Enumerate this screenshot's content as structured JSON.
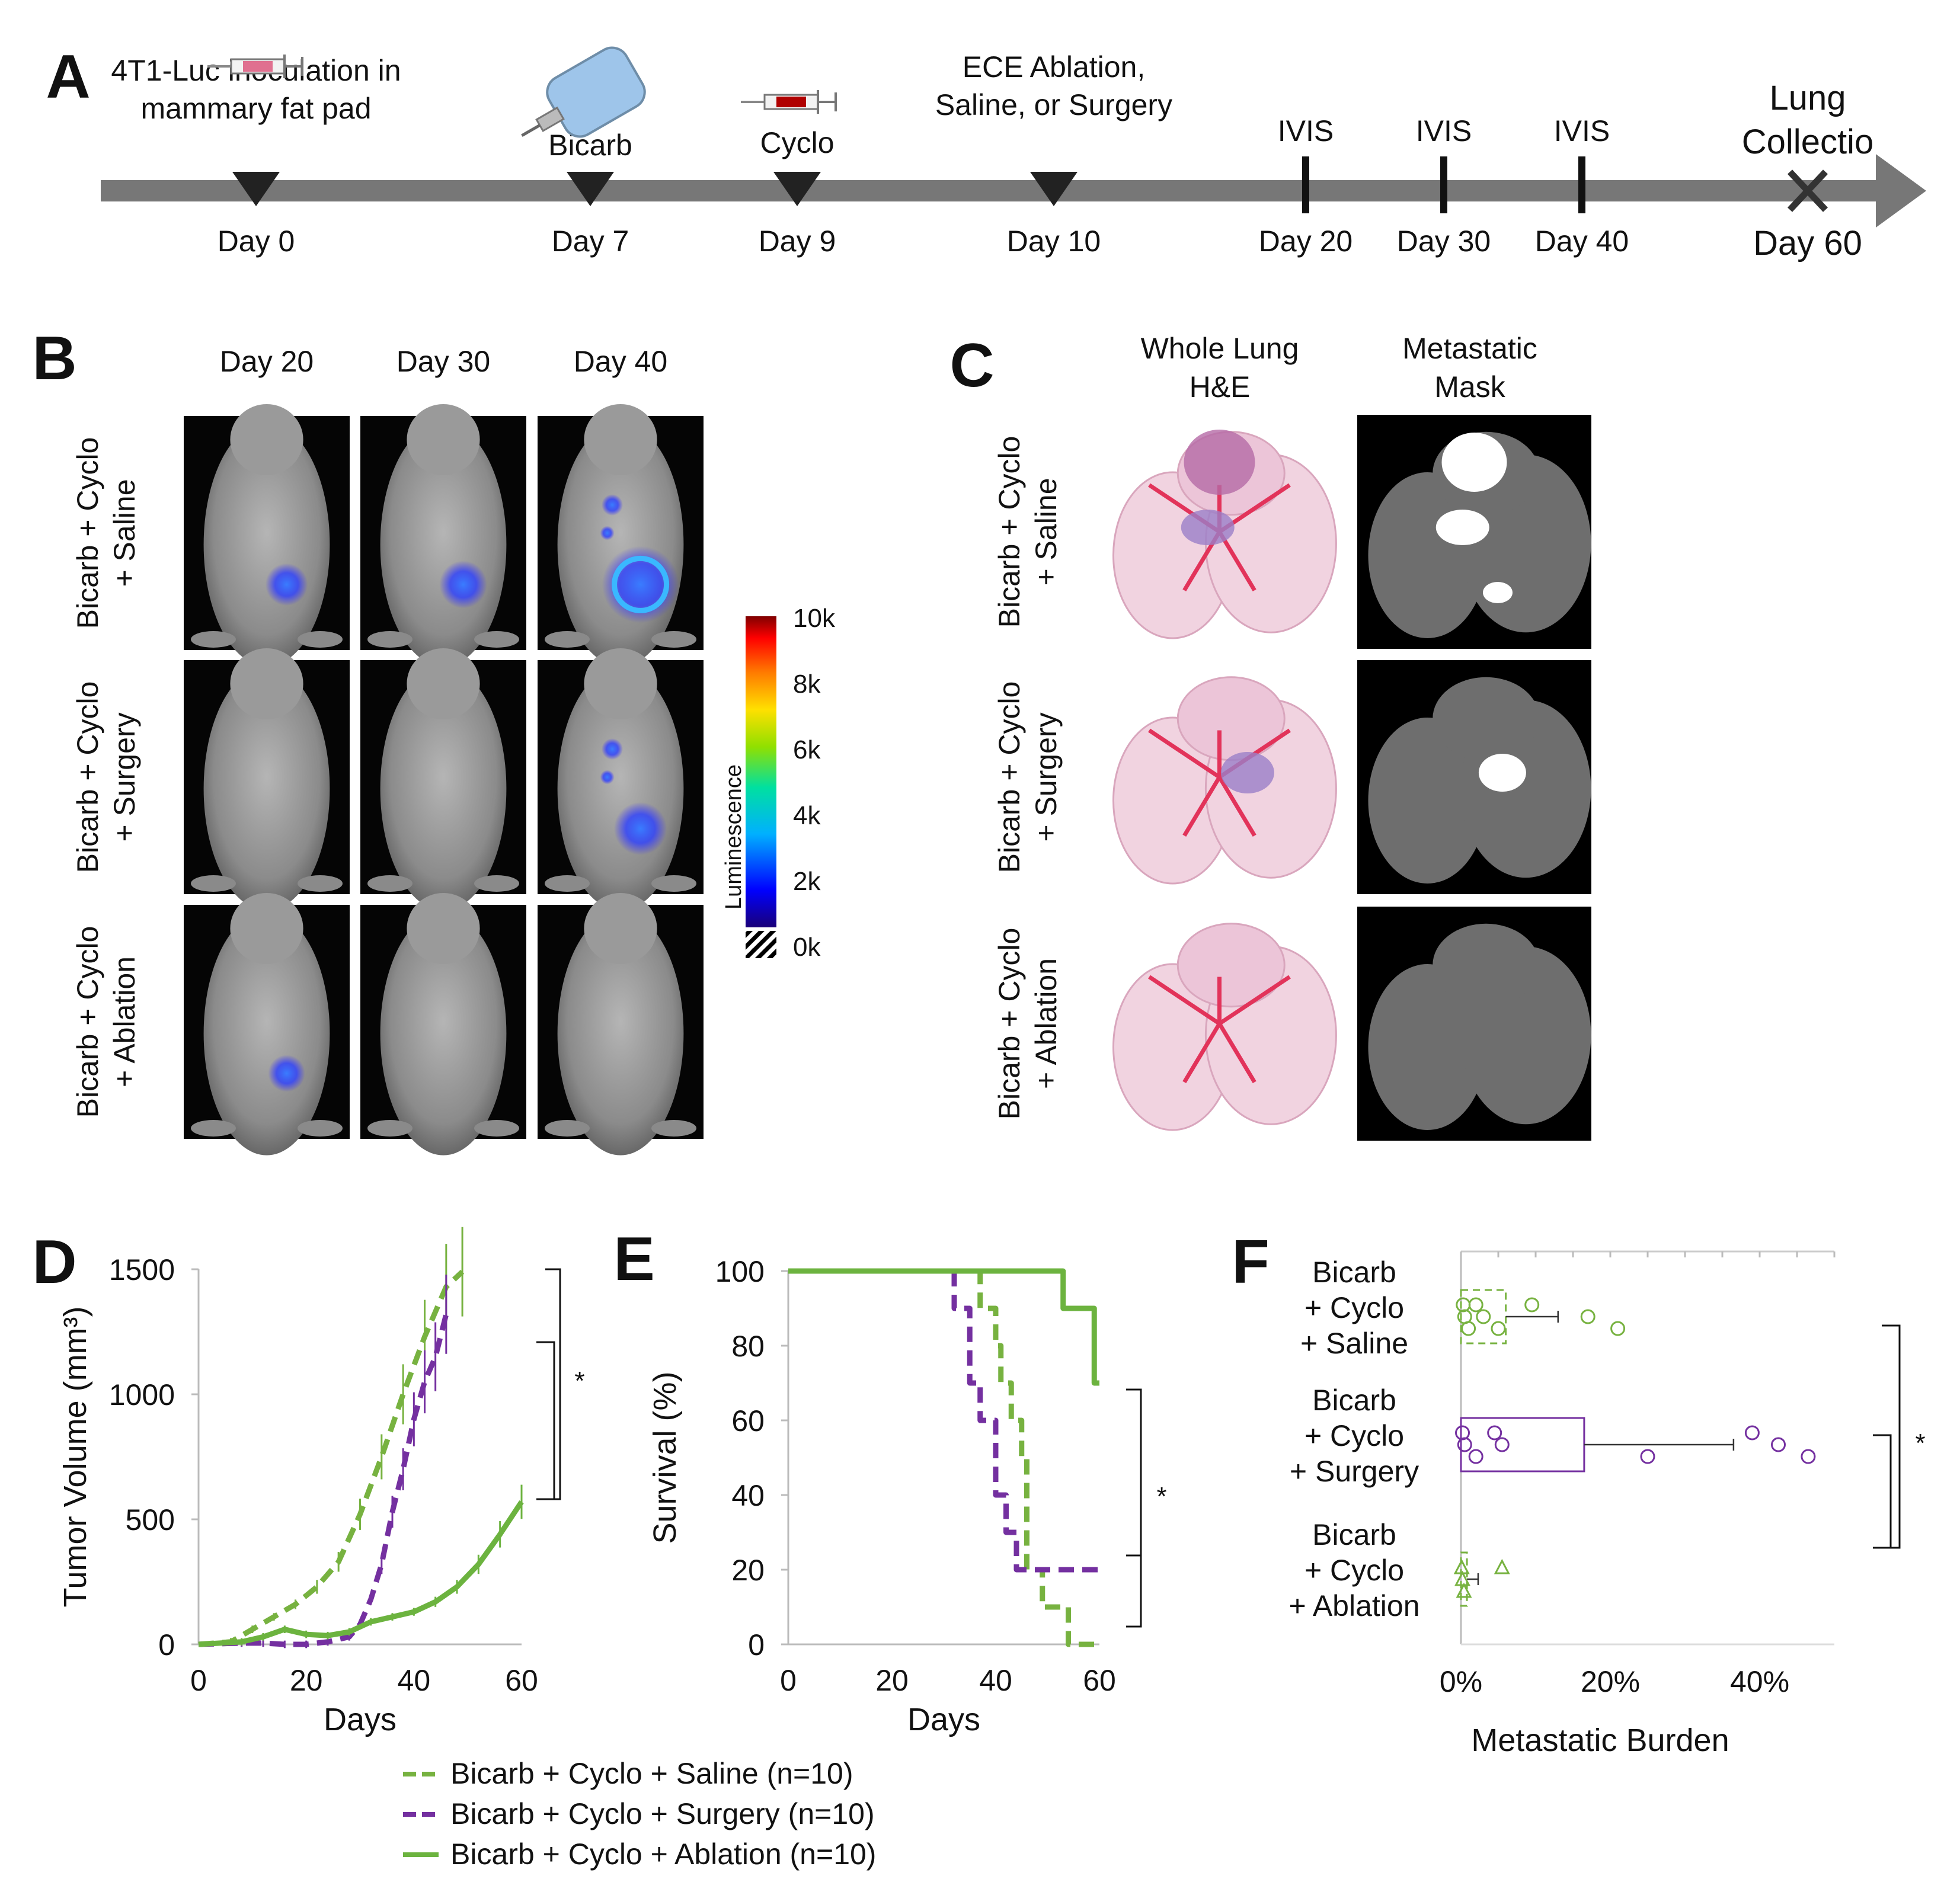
{
  "panels": {
    "a": "A",
    "b": "B",
    "c": "C",
    "d": "D",
    "e": "E",
    "f": "F"
  },
  "colors": {
    "saline": "#77b240",
    "surgery": "#7430a0",
    "ablation": "#6cb33f",
    "timeline": "#777777"
  },
  "panel_a": {
    "events": [
      {
        "lines": [
          "4T1-Luc inoculation in",
          "mammary fat pad"
        ],
        "day": "Day 0",
        "marker": "triangle",
        "icon": "syringe-icon"
      },
      {
        "lines": [
          "Bicarb"
        ],
        "day": "Day 7",
        "marker": "triangle",
        "icon": "water-bottle-icon"
      },
      {
        "lines": [
          "Cyclo"
        ],
        "day": "Day 9",
        "marker": "triangle",
        "icon": "syringe-icon"
      },
      {
        "lines": [
          "ECE Ablation,",
          "Saline, or Surgery"
        ],
        "day": "Day 10",
        "marker": "triangle",
        "icon": ""
      },
      {
        "lines": [
          "IVIS"
        ],
        "day": "Day 20",
        "marker": "tick",
        "icon": ""
      },
      {
        "lines": [
          "IVIS"
        ],
        "day": "Day 30",
        "marker": "tick",
        "icon": ""
      },
      {
        "lines": [
          "IVIS"
        ],
        "day": "Day 40",
        "marker": "tick",
        "icon": ""
      },
      {
        "lines": [
          "Lung",
          "Collectio"
        ],
        "day": "Day 60",
        "marker": "cross",
        "icon": ""
      }
    ]
  },
  "panel_b": {
    "columns": [
      "Day 20",
      "Day 30",
      "Day 40"
    ],
    "rows": [
      [
        "Bicarb + Cyclo",
        "+ Saline"
      ],
      [
        "Bicarb + Cyclo",
        "+ Surgery"
      ],
      [
        "Bicarb + Cyclo",
        "+ Ablation"
      ]
    ],
    "signal": [
      [
        0.35,
        0.45,
        1.0
      ],
      [
        0.0,
        0.0,
        0.55
      ],
      [
        0.25,
        0.0,
        0.0
      ]
    ],
    "colorbar": {
      "title": "Luminescence",
      "ticks": [
        "10k",
        "8k",
        "6k",
        "4k",
        "2k",
        "0k"
      ]
    }
  },
  "panel_c": {
    "columns": [
      [
        "Whole Lung",
        "H&E"
      ],
      [
        "Metastatic",
        "Mask"
      ]
    ],
    "rows": [
      [
        "Bicarb + Cyclo",
        "+ Saline"
      ],
      [
        "Bicarb + Cyclo",
        "+ Surgery"
      ],
      [
        "Bicarb + Cyclo",
        "+ Ablation"
      ]
    ]
  },
  "chart_data": [
    {
      "id": "D",
      "type": "line",
      "title": "",
      "xlabel": "Days",
      "ylabel": "Tumor Volume (mm³)",
      "xlim": [
        0,
        60
      ],
      "ylim": [
        0,
        1500
      ],
      "xticks": [
        "0",
        "20",
        "40",
        "60"
      ],
      "yticks": [
        "0",
        "500",
        "1000",
        "1500"
      ],
      "series": [
        {
          "name": "Bicarb + Cyclo + Saline",
          "style": "dashed",
          "color": "#77b240",
          "x": [
            0,
            6,
            10,
            14,
            18,
            22,
            26,
            30,
            34,
            38,
            42,
            46,
            49
          ],
          "y": [
            0,
            10,
            60,
            110,
            160,
            230,
            330,
            520,
            750,
            1000,
            1230,
            1430,
            1490
          ]
        },
        {
          "name": "Bicarb + Cyclo + Surgery",
          "style": "dashed",
          "color": "#7430a0",
          "x": [
            0,
            8,
            12,
            16,
            20,
            24,
            28,
            30,
            32,
            34,
            36,
            38,
            40,
            42,
            44,
            46
          ],
          "y": [
            0,
            5,
            5,
            0,
            0,
            10,
            30,
            80,
            180,
            320,
            530,
            700,
            900,
            1050,
            1150,
            1320
          ]
        },
        {
          "name": "Bicarb + Cyclo + Ablation",
          "style": "solid",
          "color": "#6cb33f",
          "x": [
            0,
            8,
            12,
            16,
            20,
            24,
            28,
            32,
            36,
            40,
            44,
            48,
            52,
            56,
            60
          ],
          "y": [
            0,
            10,
            30,
            60,
            40,
            35,
            50,
            90,
            110,
            130,
            170,
            230,
            320,
            440,
            570
          ]
        }
      ],
      "significance": "*"
    },
    {
      "id": "E",
      "type": "line",
      "title": "",
      "xlabel": "Days",
      "ylabel": "Survival (%)",
      "xlim": [
        0,
        60
      ],
      "ylim": [
        0,
        100
      ],
      "xticks": [
        "0",
        "20",
        "40",
        "60"
      ],
      "yticks": [
        "0",
        "20",
        "40",
        "60",
        "80",
        "100"
      ],
      "series": [
        {
          "name": "Bicarb + Cyclo + Saline",
          "style": "dashed",
          "color": "#77b240",
          "x": [
            0,
            37,
            37,
            40,
            40,
            41,
            41,
            43,
            43,
            45,
            45,
            46,
            46,
            49,
            49,
            54,
            54,
            60
          ],
          "y": [
            100,
            100,
            90,
            90,
            80,
            80,
            70,
            70,
            60,
            60,
            50,
            50,
            20,
            20,
            10,
            10,
            0,
            0
          ]
        },
        {
          "name": "Bicarb + Cyclo + Surgery",
          "style": "dashed",
          "color": "#7430a0",
          "x": [
            0,
            32,
            32,
            35,
            35,
            37,
            37,
            40,
            40,
            42,
            42,
            44,
            44,
            60
          ],
          "y": [
            100,
            100,
            90,
            90,
            70,
            70,
            60,
            60,
            40,
            40,
            30,
            30,
            20,
            20
          ]
        },
        {
          "name": "Bicarb + Cyclo + Ablation",
          "style": "solid",
          "color": "#6cb33f",
          "x": [
            0,
            53,
            53,
            59,
            59,
            60
          ],
          "y": [
            100,
            100,
            90,
            90,
            70,
            70
          ]
        }
      ],
      "significance": "*"
    },
    {
      "id": "F",
      "type": "bar",
      "orientation": "horizontal",
      "xlabel": "Metastatic Burden",
      "xlim": [
        0,
        50
      ],
      "xticks": [
        "0%",
        "20%",
        "40%"
      ],
      "categories": [
        [
          "Bicarb",
          "+ Cyclo",
          "+ Saline"
        ],
        [
          "Bicarb",
          "+ Cyclo",
          "+ Surgery"
        ],
        [
          "Bicarb",
          "+ Cyclo",
          "+ Ablation"
        ]
      ],
      "series": [
        {
          "name": "Bicarb + Cyclo + Saline",
          "color": "#77b240",
          "bar_style": "dashed",
          "marker": "circle",
          "mean": 6,
          "err": 7,
          "points": [
            0.3,
            0.5,
            1,
            2,
            3,
            5,
            9.5,
            17,
            21
          ]
        },
        {
          "name": "Bicarb + Cyclo + Surgery",
          "color": "#7430a0",
          "bar_style": "solid",
          "marker": "circle",
          "mean": 16.5,
          "err": 20,
          "points": [
            0.2,
            0.5,
            2,
            4.5,
            5.5,
            25,
            39,
            42.5,
            46.5
          ]
        },
        {
          "name": "Bicarb + Cyclo + Ablation",
          "color": "#77b240",
          "bar_style": "dashed",
          "marker": "triangle",
          "mean": 0.8,
          "err": 1.5,
          "points": [
            0.1,
            0.2,
            0.4,
            5.5
          ]
        }
      ],
      "significance": "*"
    }
  ],
  "legend": [
    {
      "label": "Bicarb + Cyclo + Saline (n=10)",
      "color": "#77b240",
      "style": "dashed"
    },
    {
      "label": "Bicarb + Cyclo + Surgery (n=10)",
      "color": "#7430a0",
      "style": "dashed"
    },
    {
      "label": "Bicarb + Cyclo + Ablation (n=10)",
      "color": "#6cb33f",
      "style": "solid"
    }
  ]
}
